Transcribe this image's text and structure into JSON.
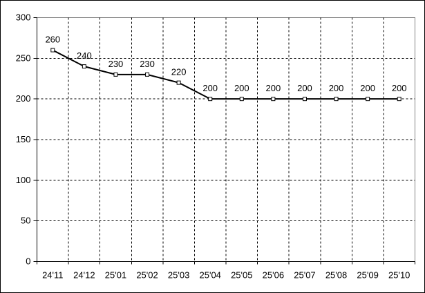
{
  "chart_data": {
    "type": "line",
    "title": "",
    "xlabel": "",
    "ylabel": "",
    "categories": [
      "24'11",
      "24'12",
      "25'01",
      "25'02",
      "25'03",
      "25'04",
      "25'05",
      "25'06",
      "25'07",
      "25'08",
      "25'09",
      "25'10"
    ],
    "values": [
      260,
      240,
      230,
      230,
      220,
      200,
      200,
      200,
      200,
      200,
      200,
      200
    ],
    "data_labels": [
      "260",
      "240",
      "230",
      "230",
      "220",
      "200",
      "200",
      "200",
      "200",
      "200",
      "200",
      "200"
    ],
    "ylim": [
      0,
      300
    ],
    "y_ticks": [
      0,
      50,
      100,
      150,
      200,
      250,
      300
    ],
    "grid": "dashed",
    "legend": "none",
    "marker": "open-square",
    "colors": {
      "line": "#000000",
      "marker_fill": "#ffffff",
      "marker_border": "#000000",
      "gridline": "#000000",
      "axis": "#000000",
      "plot_border": "#808080",
      "outer_border": "#000000",
      "background": "#ffffff",
      "text": "#000000"
    }
  }
}
